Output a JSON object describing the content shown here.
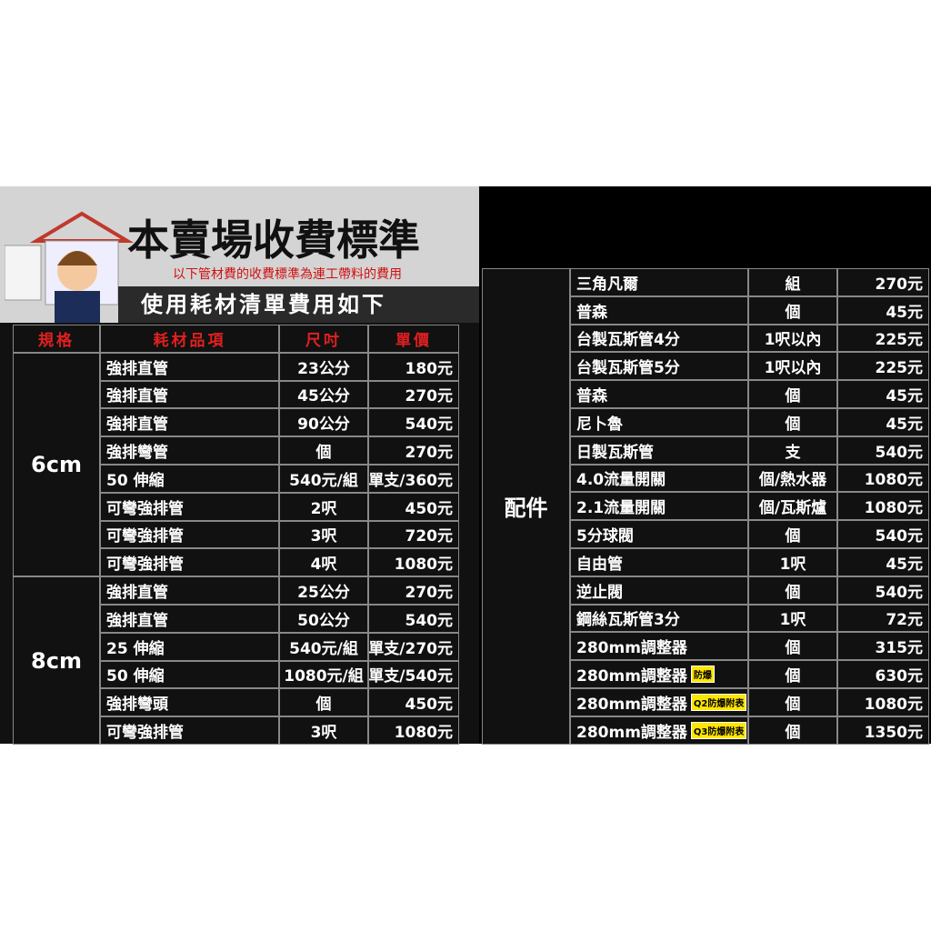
{
  "header": {
    "title": "本賣場收費標準",
    "subtitle": "以下管材費的收費標準為連工帶料的費用",
    "banner": "使用耗材清單費用如下"
  },
  "left_table": {
    "headers": [
      "規格",
      "耗材品項",
      "尺吋",
      "單價"
    ],
    "groups": [
      {
        "label": "6cm",
        "rows": [
          {
            "item": "強排直管",
            "size": "23公分",
            "price": "180元"
          },
          {
            "item": "強排直管",
            "size": "45公分",
            "price": "270元"
          },
          {
            "item": "強排直管",
            "size": "90公分",
            "price": "540元"
          },
          {
            "item": "強排彎管",
            "size": "個",
            "price": "270元"
          },
          {
            "item": "50 伸縮",
            "size": "540元/組",
            "price": "單支/360元"
          },
          {
            "item": "可彎強排管",
            "size": "2呎",
            "price": "450元"
          },
          {
            "item": "可彎強排管",
            "size": "3呎",
            "price": "720元"
          },
          {
            "item": "可彎強排管",
            "size": "4呎",
            "price": "1080元"
          }
        ]
      },
      {
        "label": "8cm",
        "rows": [
          {
            "item": "強排直管",
            "size": "25公分",
            "price": "270元"
          },
          {
            "item": "強排直管",
            "size": "50公分",
            "price": "540元"
          },
          {
            "item": "25 伸縮",
            "size": "540元/組",
            "price": "單支/270元"
          },
          {
            "item": "50 伸縮",
            "size": "1080元/組",
            "price": "單支/540元"
          },
          {
            "item": "強排彎頭",
            "size": "個",
            "price": "450元"
          },
          {
            "item": "可彎強排管",
            "size": "3呎",
            "price": "1080元"
          }
        ]
      }
    ]
  },
  "right_table": {
    "groups": [
      {
        "label": "配件",
        "rows": [
          {
            "item": "三角凡爾",
            "size": "組",
            "price": "270元"
          },
          {
            "item": "普森",
            "size": "個",
            "price": "45元"
          },
          {
            "item": "台製瓦斯管4分",
            "size": "1呎以內",
            "price": "225元"
          },
          {
            "item": "台製瓦斯管5分",
            "size": "1呎以內",
            "price": "225元"
          },
          {
            "item": "普森",
            "size": "個",
            "price": "45元"
          },
          {
            "item": "尼卜魯",
            "size": "個",
            "price": "45元"
          },
          {
            "item": "日製瓦斯管",
            "size": "支",
            "price": "540元"
          },
          {
            "item": "4.0流量開關",
            "size": "個/熱水器",
            "price": "1080元"
          },
          {
            "item": "2.1流量開關",
            "size": "個/瓦斯爐",
            "price": "1080元"
          },
          {
            "item": "5分球閥",
            "size": "個",
            "price": "540元"
          },
          {
            "item": "自由管",
            "size": "1呎",
            "price": "45元"
          },
          {
            "item": "逆止閥",
            "size": "個",
            "price": "540元"
          },
          {
            "item": "鋼絲瓦斯管3分",
            "size": "1呎",
            "price": "72元"
          },
          {
            "item": "280mm調整器",
            "size": "個",
            "price": "315元"
          },
          {
            "item": "280mm調整器",
            "badge": "防爆",
            "size": "個",
            "price": "630元"
          },
          {
            "item": "280mm調整器",
            "badge": "Q2防爆附表",
            "size": "個",
            "price": "1080元"
          },
          {
            "item": "280mm調整器",
            "badge": "Q3防爆附表",
            "size": "個",
            "price": "1350元"
          }
        ]
      }
    ]
  }
}
